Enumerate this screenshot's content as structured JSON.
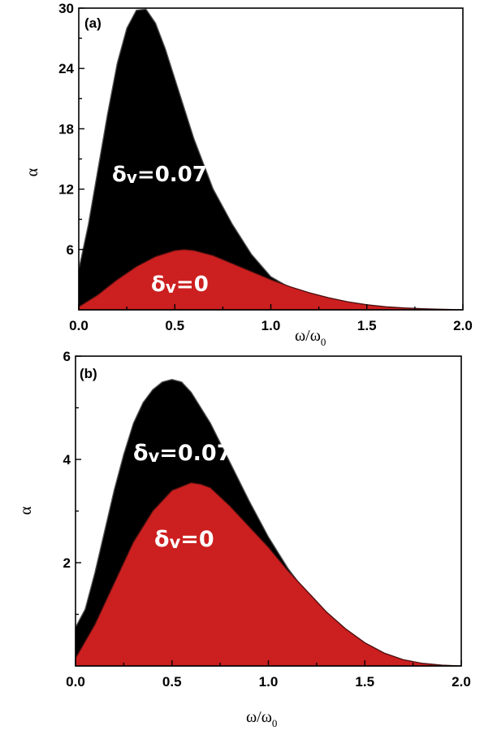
{
  "chart_data": [
    {
      "type": "area",
      "panel_label": "(a)",
      "xlabel": "ω/ω",
      "xlabel_sub": "0",
      "ylabel": "α",
      "xlim": [
        0,
        2.0
      ],
      "ylim": [
        0,
        30
      ],
      "xticks": [
        "0.0",
        "0.5",
        "1.0",
        "1.5",
        "2.0"
      ],
      "yticks": [
        "6",
        "12",
        "18",
        "24",
        "30"
      ],
      "series": [
        {
          "label": "δ",
          "label_sub": "v",
          "label_suffix": "=0.07",
          "color": "#000000",
          "x": [
            0.0,
            0.05,
            0.1,
            0.15,
            0.2,
            0.25,
            0.3,
            0.35,
            0.4,
            0.45,
            0.5,
            0.55,
            0.6,
            0.7,
            0.8,
            0.9,
            1.0,
            1.1,
            1.2,
            1.3,
            1.35,
            1.4,
            1.5,
            1.6,
            1.7,
            1.8,
            1.9,
            2.0
          ],
          "y": [
            4.0,
            8.5,
            14.0,
            19.5,
            24.5,
            28.0,
            29.8,
            29.9,
            28.5,
            26.0,
            23.0,
            20.0,
            17.0,
            12.0,
            8.5,
            5.5,
            3.3,
            2.2,
            1.3,
            0.6,
            0.3,
            0.15,
            0.05,
            0.02,
            0.01,
            0.0,
            0.0,
            0.0
          ]
        },
        {
          "label": "δ",
          "label_sub": "v",
          "label_suffix": "=0",
          "color": "#cc1f1f",
          "x": [
            0.0,
            0.1,
            0.2,
            0.3,
            0.4,
            0.5,
            0.55,
            0.6,
            0.7,
            0.8,
            0.9,
            1.0,
            1.1,
            1.2,
            1.3,
            1.4,
            1.5,
            1.6,
            1.7,
            1.8,
            1.9,
            2.0
          ],
          "y": [
            0.3,
            1.5,
            3.0,
            4.3,
            5.3,
            5.9,
            6.0,
            5.9,
            5.4,
            4.6,
            3.8,
            3.0,
            2.3,
            1.7,
            1.2,
            0.8,
            0.5,
            0.3,
            0.18,
            0.1,
            0.05,
            0.0
          ]
        }
      ]
    },
    {
      "type": "area",
      "panel_label": "(b)",
      "xlabel": "ω/ω",
      "xlabel_sub": "0",
      "ylabel": "α",
      "xlim": [
        0,
        2.0
      ],
      "ylim": [
        0,
        6
      ],
      "xticks": [
        "0.0",
        "0.5",
        "1.0",
        "1.5",
        "2.0"
      ],
      "yticks": [
        "2",
        "4",
        "6"
      ],
      "series": [
        {
          "label": "δ",
          "label_sub": "v",
          "label_suffix": "=0.07",
          "color": "#000000",
          "x": [
            0.0,
            0.05,
            0.1,
            0.15,
            0.2,
            0.25,
            0.3,
            0.35,
            0.4,
            0.45,
            0.5,
            0.55,
            0.6,
            0.65,
            0.7,
            0.8,
            0.9,
            1.0,
            1.1,
            1.2,
            1.3,
            1.4,
            1.5,
            1.6,
            1.7,
            1.8,
            1.9,
            2.0
          ],
          "y": [
            0.75,
            1.1,
            1.8,
            2.6,
            3.4,
            4.1,
            4.7,
            5.1,
            5.35,
            5.5,
            5.55,
            5.5,
            5.3,
            5.0,
            4.7,
            3.95,
            3.2,
            2.5,
            1.9,
            1.4,
            0.95,
            0.6,
            0.35,
            0.2,
            0.1,
            0.04,
            0.01,
            0.0
          ]
        },
        {
          "label": "δ",
          "label_sub": "v",
          "label_suffix": "=0",
          "color": "#cc1f1f",
          "x": [
            0.0,
            0.1,
            0.2,
            0.3,
            0.4,
            0.5,
            0.6,
            0.65,
            0.7,
            0.8,
            0.9,
            1.0,
            1.1,
            1.2,
            1.3,
            1.4,
            1.5,
            1.6,
            1.7,
            1.8,
            1.9,
            2.0
          ],
          "y": [
            0.15,
            0.8,
            1.6,
            2.4,
            3.0,
            3.4,
            3.55,
            3.52,
            3.45,
            3.1,
            2.7,
            2.3,
            1.85,
            1.45,
            1.05,
            0.72,
            0.45,
            0.25,
            0.12,
            0.05,
            0.015,
            0.0
          ]
        }
      ]
    }
  ]
}
